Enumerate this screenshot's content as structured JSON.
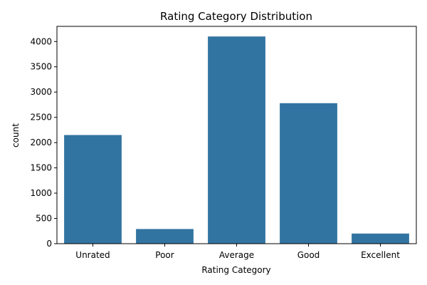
{
  "chart_data": {
    "type": "bar",
    "title": "Rating Category Distribution",
    "xlabel": "Rating Category",
    "ylabel": "count",
    "categories": [
      "Unrated",
      "Poor",
      "Average",
      "Good",
      "Excellent"
    ],
    "values": [
      2150,
      290,
      4100,
      2780,
      200
    ],
    "ylim": [
      0,
      4300
    ],
    "yticks": [
      0,
      500,
      1000,
      1500,
      2000,
      2500,
      3000,
      3500,
      4000
    ],
    "grid": false,
    "bar_color": "#3274a1"
  }
}
